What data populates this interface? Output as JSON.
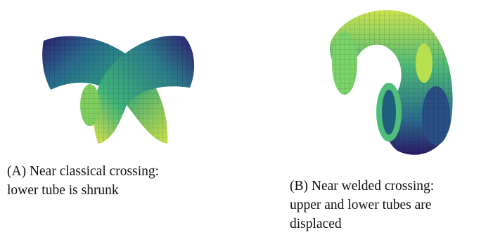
{
  "figures": [
    {
      "caption": [
        "(A) Near classical crossing:",
        "lower tube is shrunk"
      ]
    },
    {
      "caption": [
        "(B) Near welded crossing:",
        "upper and lower tubes are",
        "displaced"
      ]
    }
  ]
}
